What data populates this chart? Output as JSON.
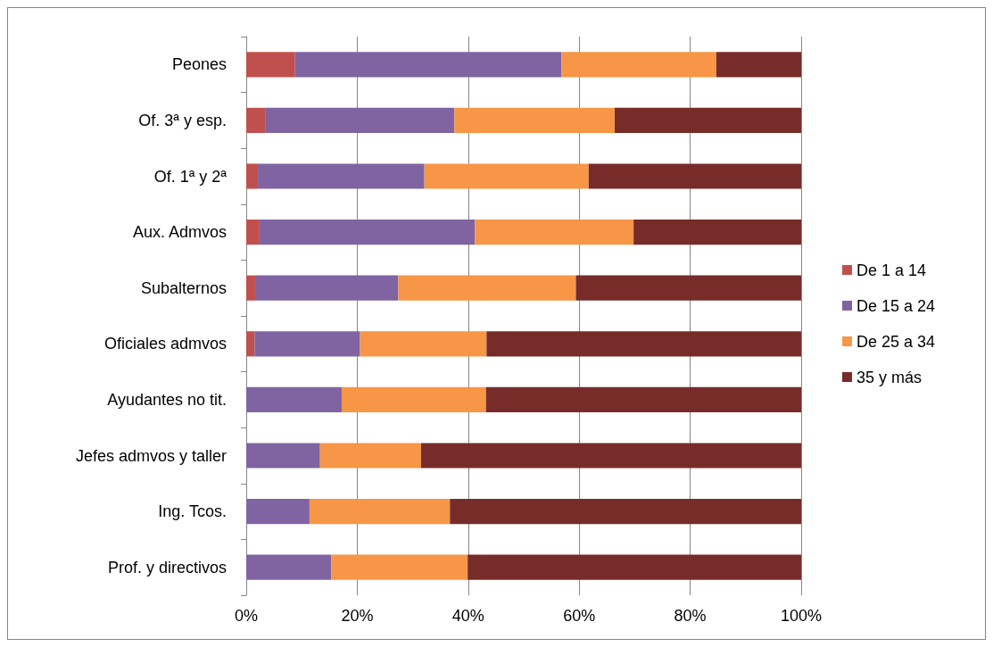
{
  "chart_data": {
    "type": "bar",
    "orientation": "horizontal",
    "stacked": true,
    "categories": [
      "Peones",
      "Of. 3ª y esp.",
      "Of. 1ª y 2ª",
      "Aux. Admvos",
      "Subalternos",
      "Oficiales admvos",
      "Ayudantes no tit.",
      "Jefes admvos y taller",
      "Ing. Tcos.",
      "Prof. y directivos"
    ],
    "series": [
      {
        "name": "De 1 a 14",
        "color": "#c0504d",
        "values": [
          8.8,
          3.4,
          2.1,
          2.4,
          1.6,
          1.5,
          0,
          0,
          0,
          0
        ]
      },
      {
        "name": "De 15 a 24",
        "color": "#8064a2",
        "values": [
          48.0,
          34.1,
          30.0,
          38.8,
          25.8,
          19.0,
          17.2,
          13.3,
          11.4,
          15.3
        ]
      },
      {
        "name": "De 25 a 34",
        "color": "#f79646",
        "values": [
          27.9,
          28.9,
          29.6,
          28.6,
          32.0,
          22.8,
          26.0,
          18.2,
          25.3,
          24.6
        ]
      },
      {
        "name": "35 y más",
        "color": "#772c2a",
        "values": [
          15.3,
          33.6,
          38.3,
          30.2,
          40.6,
          56.7,
          56.8,
          68.5,
          63.3,
          60.1
        ]
      }
    ],
    "xlim": [
      0,
      100
    ],
    "xticks": [
      {
        "value": 0,
        "label": "0%"
      },
      {
        "value": 20,
        "label": "20%"
      },
      {
        "value": 40,
        "label": "40%"
      },
      {
        "value": 60,
        "label": "60%"
      },
      {
        "value": 80,
        "label": "80%"
      },
      {
        "value": 100,
        "label": "100%"
      }
    ],
    "grid": "x",
    "legend": "right"
  }
}
